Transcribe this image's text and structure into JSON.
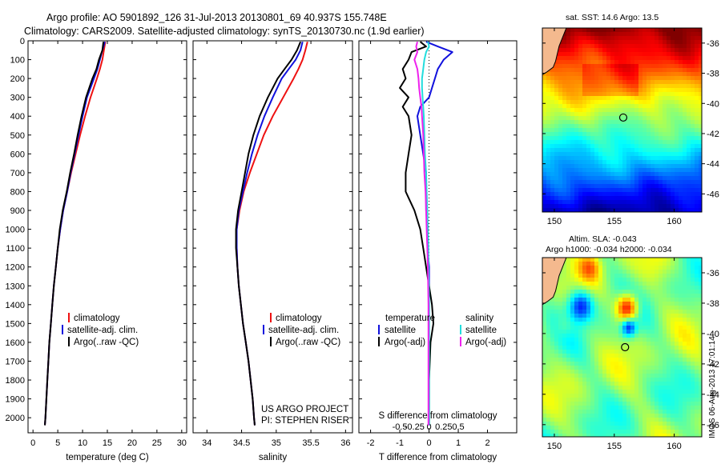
{
  "header": {
    "title_line1": "Argo profile: AO 5901892_126 31-Jul-2013 20130801_69 40.937S 155.748E",
    "title_line2": "Climatology: CARS2009. Satellite-adjusted climatology: synTS_20130730.nc (1.9d earlier)"
  },
  "colors": {
    "climatology": "#ee1111",
    "satellite": "#1111dd",
    "argo": "#000000",
    "salinity_satellite": "#22dddd",
    "salinity_argo": "#ee22ee",
    "land": "#f4b98e"
  },
  "credit": {
    "line1": "US ARGO PROJECT",
    "line2": "PI: STEPHEN RISER"
  },
  "side_label": "IMOS 06-Aug-2013 17:01:14",
  "chart_data": [
    {
      "id": "temperature",
      "type": "line",
      "xlabel": "temperature (deg C)",
      "ylabel": "",
      "xlim": [
        -1,
        31
      ],
      "ylim": [
        2080,
        0
      ],
      "xticks": [
        0,
        5,
        10,
        15,
        20,
        25,
        30
      ],
      "yticks": [
        0,
        100,
        200,
        300,
        400,
        500,
        600,
        700,
        800,
        900,
        1000,
        1100,
        1200,
        1300,
        1400,
        1500,
        1600,
        1700,
        1800,
        1900,
        2000
      ],
      "depth": [
        5,
        50,
        100,
        150,
        200,
        300,
        400,
        500,
        600,
        700,
        800,
        900,
        1000,
        1100,
        1200,
        1300,
        1400,
        1500,
        1600,
        1700,
        1800,
        1900,
        2000,
        2040
      ],
      "series": [
        {
          "name": "climatology",
          "color_key": "climatology",
          "values": [
            14.6,
            14.3,
            14.0,
            13.5,
            12.9,
            11.6,
            10.5,
            9.5,
            8.6,
            7.7,
            6.9,
            6.1,
            5.5,
            5.0,
            4.6,
            4.2,
            3.9,
            3.6,
            3.3,
            3.1,
            2.9,
            2.7,
            2.5,
            2.4
          ]
        },
        {
          "name": "satellite-adj. clim.",
          "color_key": "satellite",
          "values": [
            14.5,
            14.0,
            13.5,
            13.0,
            12.3,
            10.9,
            10.0,
            9.2,
            8.4,
            7.6,
            6.9,
            6.1,
            5.5,
            5.0,
            4.6,
            4.2,
            3.9,
            3.6,
            3.3,
            3.1,
            2.9,
            2.7,
            2.5,
            2.4
          ]
        },
        {
          "name": "Argo(..raw -QC)",
          "color_key": "argo",
          "values": [
            14.2,
            14.0,
            13.3,
            12.8,
            12.0,
            10.7,
            9.8,
            9.0,
            8.3,
            7.5,
            6.8,
            6.0,
            5.4,
            5.0,
            4.6,
            4.2,
            3.9,
            3.6,
            3.3,
            3.1,
            2.9,
            2.7,
            2.5,
            2.4
          ]
        }
      ],
      "legend": [
        "climatology",
        "satellite-adj. clim.",
        "Argo(..raw -QC)"
      ]
    },
    {
      "id": "salinity",
      "type": "line",
      "xlabel": "salinity",
      "xlim": [
        33.8,
        36.1
      ],
      "ylim": [
        2080,
        0
      ],
      "xticks": [
        34,
        34.5,
        35,
        35.5,
        36
      ],
      "depth": [
        5,
        50,
        100,
        150,
        200,
        300,
        400,
        500,
        600,
        700,
        800,
        900,
        1000,
        1100,
        1200,
        1300,
        1400,
        1500,
        1600,
        1700,
        1800,
        1900,
        2000,
        2040
      ],
      "series": [
        {
          "name": "climatology",
          "color_key": "climatology",
          "values": [
            35.45,
            35.42,
            35.38,
            35.32,
            35.25,
            35.1,
            34.95,
            34.82,
            34.72,
            34.62,
            34.53,
            34.47,
            34.43,
            34.43,
            34.44,
            34.46,
            34.49,
            34.52,
            34.56,
            34.6,
            34.63,
            34.66,
            34.68,
            34.69
          ]
        },
        {
          "name": "satellite-adj. clim.",
          "color_key": "satellite",
          "values": [
            35.38,
            35.35,
            35.28,
            35.18,
            35.08,
            34.95,
            34.83,
            34.73,
            34.65,
            34.58,
            34.52,
            34.46,
            34.43,
            34.43,
            34.44,
            34.46,
            34.49,
            34.52,
            34.56,
            34.6,
            34.63,
            34.66,
            34.68,
            34.69
          ]
        },
        {
          "name": "Argo(..raw -QC)",
          "color_key": "argo",
          "values": [
            35.35,
            35.3,
            35.22,
            35.12,
            35.02,
            34.88,
            34.76,
            34.67,
            34.6,
            34.55,
            34.5,
            34.45,
            34.42,
            34.42,
            34.44,
            34.46,
            34.49,
            34.52,
            34.56,
            34.6,
            34.63,
            34.66,
            34.68,
            34.69
          ]
        }
      ],
      "legend": [
        "climatology",
        "satellite-adj. clim.",
        "Argo(..raw -QC)"
      ]
    },
    {
      "id": "difference",
      "type": "line",
      "xlabel": "T difference from climatology",
      "top_label": "S difference from climatology",
      "xlim": [
        -2.4,
        3.0
      ],
      "ylim": [
        2080,
        0
      ],
      "t_ticks": [
        -2,
        -1,
        0,
        1,
        2
      ],
      "s_ticks": [
        -0.5,
        -0.25,
        0,
        0.25,
        0.5
      ],
      "s_tick_labels": [
        "-0.5",
        "-0.25",
        "0",
        "0.25",
        "0.5"
      ],
      "depth": [
        5,
        30,
        60,
        100,
        150,
        200,
        250,
        300,
        350,
        400,
        500,
        600,
        700,
        800,
        900,
        1000,
        1100,
        1200,
        1400,
        1500,
        1600,
        1800,
        2000,
        2040
      ],
      "series": [
        {
          "name": "temperature satellite",
          "color_key": "satellite",
          "kind": "T",
          "values": [
            -0.1,
            0.3,
            0.8,
            0.5,
            0.3,
            0.2,
            0.1,
            0.0,
            -0.3,
            -0.4,
            -0.3,
            -0.2,
            -0.1,
            -0.1,
            -0.1,
            -0.05,
            -0.05,
            0.0,
            0.0,
            0.0,
            0.0,
            0.0,
            0.0,
            0.0
          ]
        },
        {
          "name": "temperature Argo(-adj)",
          "color_key": "argo",
          "kind": "T",
          "values": [
            -0.3,
            -0.1,
            -0.6,
            -0.7,
            -0.9,
            -0.8,
            -1.0,
            -0.7,
            -0.9,
            -0.7,
            -0.6,
            -0.7,
            -0.8,
            -0.8,
            -0.5,
            -0.3,
            -0.2,
            -0.1,
            0.1,
            0.15,
            0.05,
            0.0,
            0.0,
            0.0
          ]
        },
        {
          "name": "salinity satellite",
          "color_key": "salinity_satellite",
          "kind": "S",
          "values": [
            -0.02,
            0.0,
            -0.05,
            -0.08,
            -0.1,
            -0.12,
            -0.12,
            -0.11,
            -0.1,
            -0.09,
            -0.08,
            -0.07,
            -0.05,
            -0.04,
            -0.03,
            -0.02,
            -0.01,
            -0.01,
            0.0,
            0.0,
            0.0,
            0.0,
            0.0,
            0.0
          ]
        },
        {
          "name": "salinity Argo(-adj)",
          "color_key": "salinity_argo",
          "kind": "S",
          "values": [
            -0.2,
            -0.22,
            -0.2,
            -0.25,
            -0.2,
            -0.18,
            -0.17,
            -0.15,
            -0.13,
            -0.12,
            -0.1,
            -0.09,
            -0.08,
            -0.06,
            -0.05,
            -0.04,
            -0.03,
            -0.02,
            -0.01,
            -0.01,
            -0.01,
            -0.01,
            -0.01,
            -0.01
          ]
        }
      ],
      "legend_t_title": "temperature",
      "legend_s_title": "salinity",
      "legend_t": [
        "satellite",
        "Argo(-adj)"
      ],
      "legend_s": [
        "satellite",
        "Argo(-adj)"
      ]
    },
    {
      "id": "sst_map",
      "type": "heatmap",
      "title": "sat. SST: 14.6 Argo: 13.5",
      "xlim": [
        149,
        162.3
      ],
      "ylim": [
        -47.2,
        -35
      ],
      "xticks": [
        150,
        155,
        160
      ],
      "yticks": [
        -36,
        -38,
        -40,
        -42,
        -44,
        -46
      ],
      "marker": {
        "lon": 155.748,
        "lat": -40.937
      }
    },
    {
      "id": "sla_map",
      "type": "heatmap",
      "title_line1": "Altim. SLA: -0.043",
      "title_line2": "Argo h1000: -0.034 h2000: -0.034",
      "xlim": [
        149,
        162.3
      ],
      "ylim": [
        -46.8,
        -35
      ],
      "xticks": [
        150,
        155,
        160
      ],
      "yticks": [
        -36,
        -38,
        -40,
        -42,
        -44,
        -46
      ],
      "marker": {
        "lon": 155.9,
        "lat": -40.9
      }
    }
  ]
}
